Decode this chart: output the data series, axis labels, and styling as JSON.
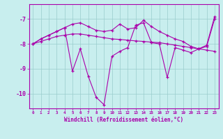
{
  "background_color": "#c8eeee",
  "line_color": "#aa00aa",
  "grid_color": "#99cccc",
  "ylim": [
    -10.6,
    -6.4
  ],
  "xlim": [
    -0.5,
    23.5
  ],
  "yticks": [
    -10,
    -9,
    -8,
    -7
  ],
  "xticks": [
    0,
    1,
    2,
    3,
    4,
    5,
    6,
    7,
    8,
    9,
    10,
    11,
    12,
    13,
    14,
    15,
    16,
    17,
    18,
    19,
    20,
    21,
    22,
    23
  ],
  "xlabel": "Windchill (Refroidissement éolien,°C)",
  "series1": [
    -8.0,
    -7.9,
    -7.8,
    -7.7,
    -7.65,
    -7.6,
    -7.6,
    -7.65,
    -7.7,
    -7.75,
    -7.8,
    -7.82,
    -7.85,
    -7.88,
    -7.9,
    -7.93,
    -7.95,
    -8.0,
    -8.05,
    -8.1,
    -8.15,
    -8.2,
    -8.25,
    -8.3
  ],
  "series2": [
    -8.0,
    -7.8,
    -7.65,
    -7.5,
    -7.35,
    -9.1,
    -8.2,
    -9.3,
    -10.15,
    -10.45,
    -8.5,
    -8.3,
    -8.15,
    -7.25,
    -7.15,
    -7.95,
    -8.0,
    -9.35,
    -8.15,
    -8.25,
    -8.35,
    -8.2,
    -8.1,
    -7.0
  ],
  "series3": [
    -8.0,
    -7.8,
    -7.65,
    -7.5,
    -7.35,
    -7.2,
    -7.15,
    -7.3,
    -7.45,
    -7.5,
    -7.45,
    -7.2,
    -7.4,
    -7.35,
    -7.05,
    -7.3,
    -7.5,
    -7.65,
    -7.8,
    -7.9,
    -8.1,
    -8.2,
    -8.05,
    -6.9
  ]
}
